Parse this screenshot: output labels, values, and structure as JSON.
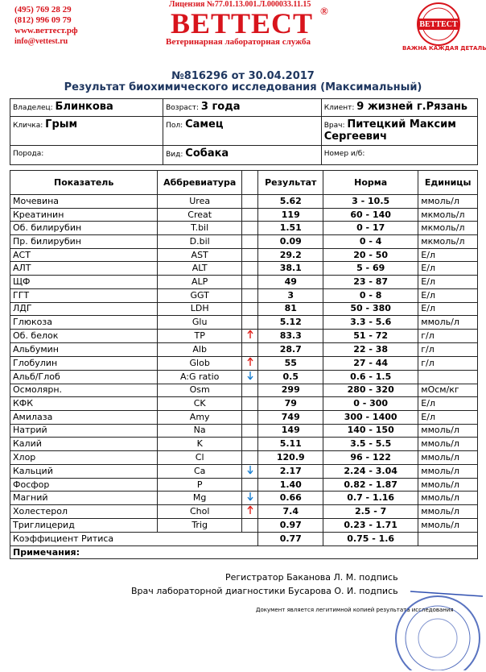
{
  "header": {
    "phones": [
      "(495) 769 28 29",
      "(812) 996 09 79"
    ],
    "site": "www.веттест.рф",
    "email": "info@vettest.ru",
    "license": "Лицензия №77.01.13.001.Л.000033.11.15",
    "brand": "ВЕТТЕСТ",
    "registered": "®",
    "service": "Ветеринарная лабораторная служба",
    "stamp": "ВЕТТЕСТ",
    "slogan": "ВАЖНА КАЖДАЯ ДЕТАЛЬ!"
  },
  "title": "№816296 от 30.04.2017",
  "subtitle": "Результат биохимического исследования (Максимальный)",
  "info": [
    [
      {
        "label": "Владелец:",
        "value": "Блинкова"
      },
      {
        "label": "Возраст:",
        "value": "3 года"
      },
      {
        "label": "Клиент:",
        "value": "9 жизней г.Рязань"
      }
    ],
    [
      {
        "label": "Кличка:",
        "value": "Грым"
      },
      {
        "label": "Пол:",
        "value": "Самец"
      },
      {
        "label": "Врач:",
        "value": "Питецкий Максим Сергеевич"
      }
    ],
    [
      {
        "label": "Порода:"
      },
      {
        "label": "Вид:",
        "value": "Собака"
      },
      {
        "label": "Номер и/б:"
      }
    ]
  ],
  "table": {
    "header": {
      "name": "Показатель",
      "abbr": "Аббревиатура",
      "result": "Результат",
      "norm": "Норма",
      "units": "Единицы"
    },
    "rows": [
      {
        "name": "Мочевина",
        "abbr": "Urea",
        "result": "5.62",
        "norm": "3 - 10.5",
        "units": "ммоль/л"
      },
      {
        "name": "Креатинин",
        "abbr": "Creat",
        "result": "119",
        "norm": "60 - 140",
        "units": "мкмоль/л"
      },
      {
        "name": "Об. билирубин",
        "abbr": "T.bil",
        "result": "1.51",
        "norm": "0 - 17",
        "units": "мкмоль/л"
      },
      {
        "name": "Пр. билирубин",
        "abbr": "D.bil",
        "result": "0.09",
        "norm": "0 - 4",
        "units": "мкмоль/л"
      },
      {
        "name": "АСТ",
        "abbr": "AST",
        "result": "29.2",
        "norm": "20 - 50",
        "units": "Е/л"
      },
      {
        "name": "АЛТ",
        "abbr": "ALT",
        "result": "38.1",
        "norm": "5 - 69",
        "units": "Е/л"
      },
      {
        "name": "ЩФ",
        "abbr": "ALP",
        "result": "49",
        "norm": "23 - 87",
        "units": "Е/л"
      },
      {
        "name": "ГГТ",
        "abbr": "GGT",
        "result": "3",
        "norm": "0 - 8",
        "units": "Е/л"
      },
      {
        "name": "ЛДГ",
        "abbr": "LDH",
        "result": "81",
        "norm": "50 - 380",
        "units": "Е/л"
      },
      {
        "name": "Глюкоза",
        "abbr": "Glu",
        "result": "5.12",
        "norm": "3.3 - 5.6",
        "units": "ммоль/л"
      },
      {
        "name": "Об. белок",
        "abbr": "TP",
        "flag": "up",
        "result": "83.3",
        "norm": "51 - 72",
        "units": "г/л"
      },
      {
        "name": "Альбумин",
        "abbr": "Alb",
        "result": "28.7",
        "norm": "22 - 38",
        "units": "г/л"
      },
      {
        "name": "Глобулин",
        "abbr": "Glob",
        "flag": "up",
        "result": "55",
        "norm": "27 - 44",
        "units": "г/л"
      },
      {
        "name": "Альб/Глоб",
        "abbr": "A:G ratio",
        "flag": "down",
        "result": "0.5",
        "norm": "0.6 - 1.5"
      },
      {
        "name": "Осмолярн.",
        "abbr": "Osm",
        "result": "299",
        "norm": "280 - 320",
        "units": "мОсм/кг"
      },
      {
        "name": "КФК",
        "abbr": "CK",
        "result": "79",
        "norm": "0 - 300",
        "units": "Е/л"
      },
      {
        "name": "Амилаза",
        "abbr": "Amy",
        "result": "749",
        "norm": "300 - 1400",
        "units": "Е/л"
      },
      {
        "name": "Натрий",
        "abbr": "Na",
        "result": "149",
        "norm": "140 - 150",
        "units": "ммоль/л"
      },
      {
        "name": "Калий",
        "abbr": "K",
        "result": "5.11",
        "norm": "3.5 - 5.5",
        "units": "ммоль/л"
      },
      {
        "name": "Хлор",
        "abbr": "Cl",
        "result": "120.9",
        "norm": "96 - 122",
        "units": "ммоль/л"
      },
      {
        "name": "Кальций",
        "abbr": "Ca",
        "flag": "down",
        "result": "2.17",
        "norm": "2.24 - 3.04",
        "units": "ммоль/л"
      },
      {
        "name": "Фосфор",
        "abbr": "P",
        "result": "1.40",
        "norm": "0.82 - 1.87",
        "units": "ммоль/л"
      },
      {
        "name": "Магний",
        "abbr": "Mg",
        "flag": "down",
        "result": "0.66",
        "norm": "0.7 - 1.16",
        "units": "ммоль/л"
      },
      {
        "name": "Холестерол",
        "abbr": "Chol",
        "flag": "up",
        "result": "7.4",
        "norm": "2.5 - 7",
        "units": "ммоль/л"
      },
      {
        "name": "Триглицерид",
        "abbr": "Trig",
        "result": "0.97",
        "norm": "0.23 - 1.71",
        "units": "ммоль/л"
      },
      {
        "name": "Коэффициент Ритиса",
        "result": "0.77",
        "norm": "0.75 - 1.6"
      }
    ],
    "notes": "Примечания:"
  },
  "signatures": [
    "Регистратор Баканова Л. М. подпись",
    "Врач лабораторной диагностики Бусарова О. И. подпись"
  ],
  "footnote": "Документ является легитимной копией результата исследования"
}
